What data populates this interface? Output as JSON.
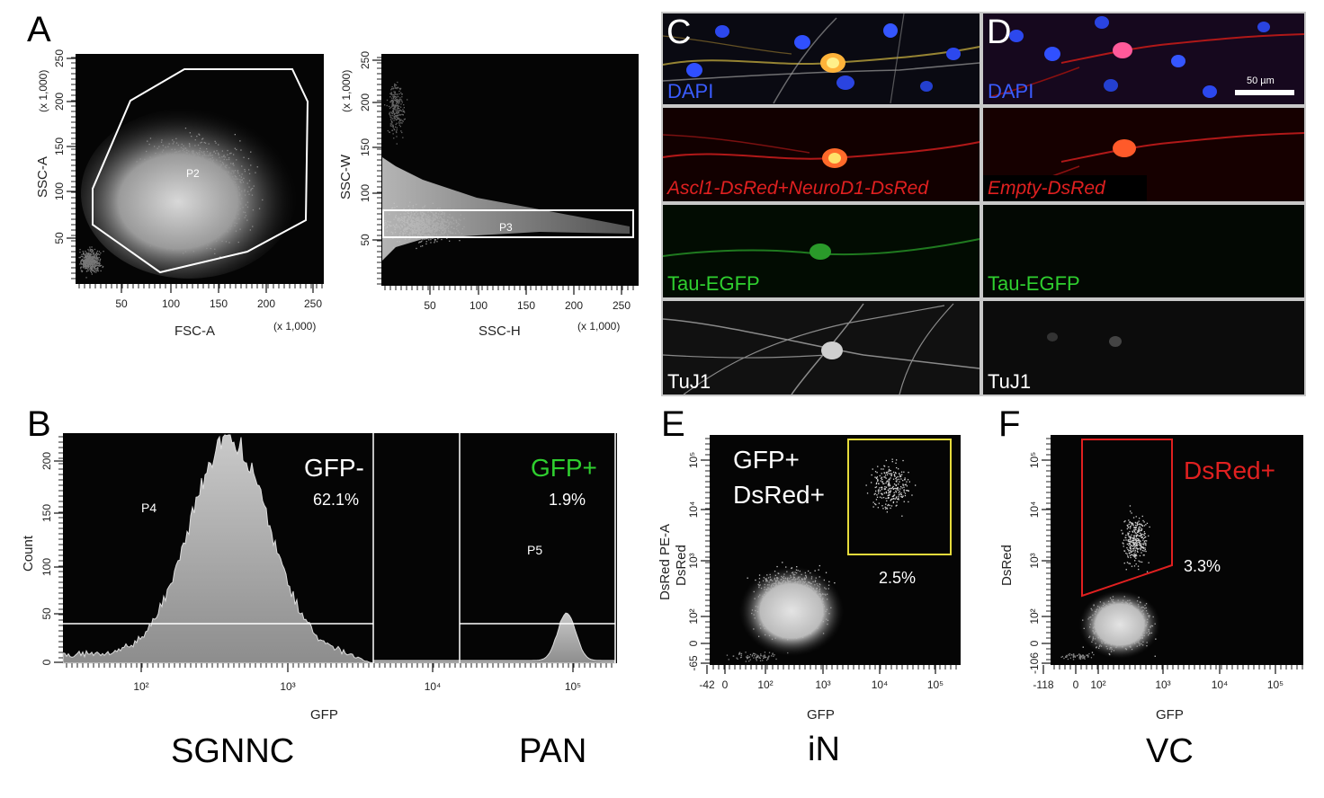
{
  "colors": {
    "gate_white": "#ffffff",
    "gfp_green": "#2fcf2f",
    "dsred_red": "#e02020",
    "gate_yellow": "#e6dc3c",
    "dapi_blue": "#3a5cff"
  },
  "panels": {
    "A": {
      "letter": "A",
      "plot1": {
        "xlabel": "FSC-A",
        "ylabel": "SSC-A",
        "xunit": "(x 1,000)",
        "yunit": "(x 1,000)",
        "xticks": [
          "50",
          "100",
          "150",
          "200",
          "250"
        ],
        "yticks": [
          "50",
          "100",
          "150",
          "200",
          "250"
        ],
        "gate": "P2"
      },
      "plot2": {
        "xlabel": "SSC-H",
        "ylabel": "SSC-W",
        "xunit": "(x 1,000)",
        "yunit": "(x 1,000)",
        "xticks": [
          "50",
          "100",
          "150",
          "200",
          "250"
        ],
        "yticks": [
          "50",
          "100",
          "150",
          "200",
          "250"
        ],
        "gate": "P3"
      }
    },
    "B": {
      "letter": "B",
      "ylabel": "Count",
      "xlabel": "GFP",
      "yticks": [
        "0",
        "50",
        "100",
        "150",
        "200"
      ],
      "left": {
        "gate": "P4",
        "label": "GFP-",
        "percent": "62.1%",
        "xticks": [
          "10²",
          "10³",
          "10⁴"
        ],
        "caption": "SGNNC"
      },
      "right": {
        "gate": "P5",
        "label": "GFP+",
        "percent": "1.9%",
        "xticks": [
          "10⁵"
        ],
        "caption": "PAN"
      }
    },
    "C": {
      "letter": "C",
      "rows": [
        "DAPI",
        "Ascl1-DsRed+NeuroD1-DsRed",
        "Tau-EGFP",
        "TuJ1"
      ]
    },
    "D": {
      "letter": "D",
      "rows": [
        "DAPI",
        "Empty-DsRed",
        "Tau-EGFP",
        "TuJ1"
      ],
      "scale_bar": "50 µm"
    },
    "E": {
      "letter": "E",
      "ylabel_top": "DsRed PE-A",
      "ylabel": "DsRed",
      "xlabel": "GFP",
      "gate_label_1": "GFP+",
      "gate_label_2": "DsRed+",
      "percent": "2.5%",
      "xticks": [
        "-42",
        "0",
        "10²",
        "10³",
        "10⁴",
        "10⁵"
      ],
      "yticks": [
        "-65",
        "0",
        "10²",
        "10³",
        "10⁴",
        "10⁵"
      ],
      "caption": "iN"
    },
    "F": {
      "letter": "F",
      "ylabel": "DsRed",
      "xlabel": "GFP",
      "gate_label": "DsRed+",
      "percent": "3.3%",
      "xticks": [
        "-118",
        "0",
        "10²",
        "10³",
        "10⁴",
        "10⁵"
      ],
      "yticks": [
        "-106",
        "0",
        "10²",
        "10³",
        "10⁴",
        "10⁵"
      ],
      "caption": "VC"
    }
  }
}
